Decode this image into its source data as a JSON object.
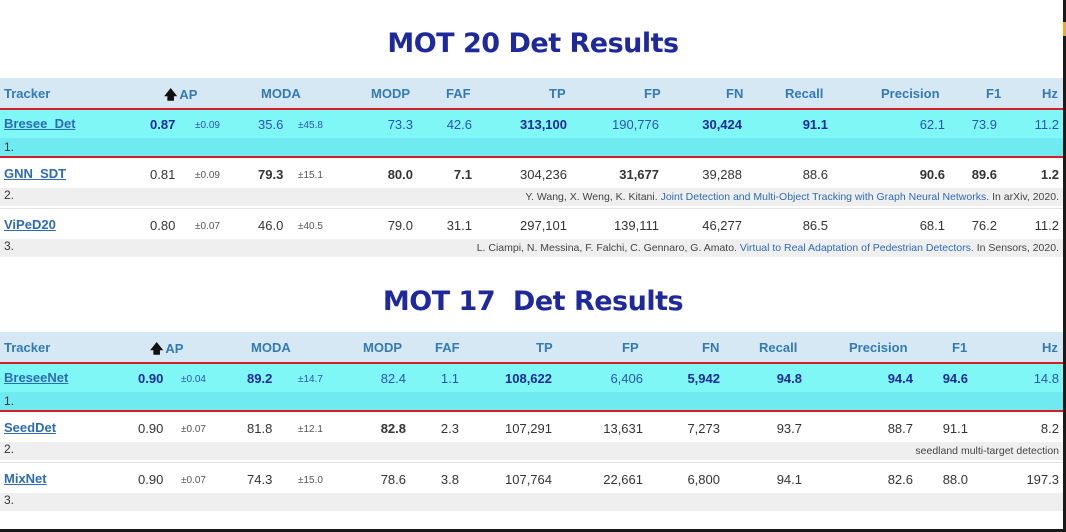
{
  "mot20": {
    "title": "MOT 20 Det Results",
    "headers": {
      "tracker": "Tracker",
      "ap_arrow": "🡅",
      "ap": "AP",
      "moda": "MODA",
      "modp": "MODP",
      "faf": "FAF",
      "tp": "TP",
      "fp": "FP",
      "fn": "FN",
      "recall": "Recall",
      "precision": "Precision",
      "f1": "F1",
      "hz": "Hz"
    },
    "rows": [
      {
        "name": "Bresee_Det",
        "rank": "1.",
        "ap": "0.87",
        "ap_sd": "±0.09",
        "moda": "35.6",
        "moda_sd": "±45.8",
        "modp": "73.3",
        "faf": "42.6",
        "tp": "313,100",
        "fp": "190,776",
        "fn": "30,424",
        "recall": "91.1",
        "precision": "62.1",
        "f1": "73.9",
        "hz": "11.2"
      },
      {
        "name": "GNN_SDT",
        "rank": "2.",
        "ap": "0.81",
        "ap_sd": "±0.09",
        "moda": "79.3",
        "moda_sd": "±15.1",
        "modp": "80.0",
        "faf": "7.1",
        "tp": "304,236",
        "fp": "31,677",
        "fn": "39,288",
        "recall": "88.6",
        "precision": "90.6",
        "f1": "89.6",
        "hz": "1.2",
        "cite_authors": "Y. Wang, X. Weng, K. Kitani.",
        "cite_title": "Joint Detection and Multi-Object Tracking with Graph Neural Networks.",
        "cite_venue": "In arXiv, 2020."
      },
      {
        "name": "ViPeD20",
        "rank": "3.",
        "ap": "0.80",
        "ap_sd": "±0.07",
        "moda": "46.0",
        "moda_sd": "±40.5",
        "modp": "79.0",
        "faf": "31.1",
        "tp": "297,101",
        "fp": "139,111",
        "fn": "46,277",
        "recall": "86.5",
        "precision": "68.1",
        "f1": "76.2",
        "hz": "11.2",
        "cite_authors": "L. Ciampi, N. Messina, F. Falchi, C. Gennaro, G. Amato.",
        "cite_title": "Virtual to Real Adaptation of Pedestrian Detectors.",
        "cite_venue": "In Sensors, 2020."
      }
    ]
  },
  "mot17": {
    "title": "MOT 17  Det Results",
    "headers": {
      "tracker": "Tracker",
      "ap_arrow": "🡅",
      "ap": "AP",
      "moda": "MODA",
      "modp": "MODP",
      "faf": "FAF",
      "tp": "TP",
      "fp": "FP",
      "fn": "FN",
      "recall": "Recall",
      "precision": "Precision",
      "f1": "F1",
      "hz": "Hz"
    },
    "rows": [
      {
        "name": "BreseeNet",
        "rank": "1.",
        "ap": "0.90",
        "ap_sd": "±0.04",
        "moda": "89.2",
        "moda_sd": "±14.7",
        "modp": "82.4",
        "faf": "1.1",
        "tp": "108,622",
        "fp": "6,406",
        "fn": "5,942",
        "recall": "94.8",
        "precision": "94.4",
        "f1": "94.6",
        "hz": "14.8"
      },
      {
        "name": "SeedDet",
        "rank": "2.",
        "ap": "0.90",
        "ap_sd": "±0.07",
        "moda": "81.8",
        "moda_sd": "±12.1",
        "modp": "82.8",
        "faf": "2.3",
        "tp": "107,291",
        "fp": "13,631",
        "fn": "7,273",
        "recall": "93.7",
        "precision": "88.7",
        "f1": "91.1",
        "hz": "8.2",
        "cite_note": "seedland multi-target detection"
      },
      {
        "name": "MixNet",
        "rank": "3.",
        "ap": "0.90",
        "ap_sd": "±0.07",
        "moda": "74.3",
        "moda_sd": "±15.0",
        "modp": "78.6",
        "faf": "3.8",
        "tp": "107,764",
        "fp": "22,661",
        "fn": "6,800",
        "recall": "94.1",
        "precision": "82.6",
        "f1": "88.0",
        "hz": "197.3"
      }
    ]
  },
  "colors": {
    "title": "#1e2a9c",
    "header_bg": "#d5e8f3",
    "winner_bg": "#7ff7f7",
    "winner_border": "#d21f25",
    "link": "#2d6bb5"
  }
}
